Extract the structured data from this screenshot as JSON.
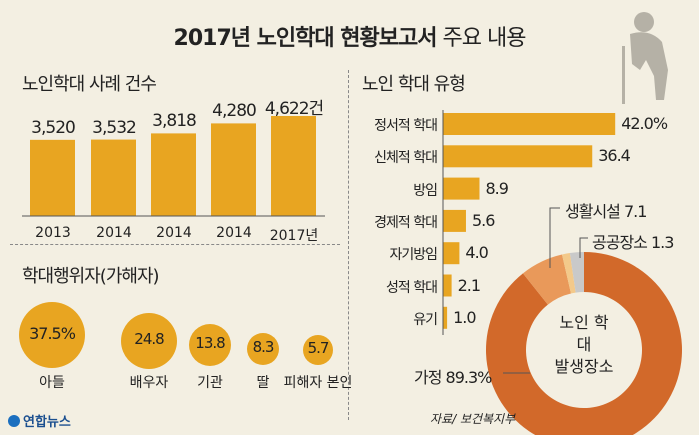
{
  "title": {
    "bold": "2017년 노인학대 현황보고서",
    "normal": " 주요 내용"
  },
  "source": "자료/ 보건복지부",
  "logo": "연합뉴스",
  "colors": {
    "bar": "#e8a521",
    "donut_home": "#d2692a",
    "donut_facility": "#e9995a",
    "donut_public": "#f3c98a",
    "donut_other": "#c9c9c9",
    "background": "#f3efe2"
  },
  "chart_data": [
    {
      "type": "bar",
      "title": "노인학대 사례 건수",
      "categories": [
        "2013",
        "2014",
        "2014",
        "2014",
        "2017년"
      ],
      "values": [
        3520,
        3532,
        3818,
        4280,
        4622
      ],
      "data_labels": [
        "3,520",
        "3,532",
        "3,818",
        "4,280",
        "4,622건"
      ],
      "ylim": [
        0,
        4622
      ],
      "grid": false
    },
    {
      "type": "bubble",
      "title": "학대행위자(가해자)",
      "categories": [
        "아들",
        "배우자",
        "기관",
        "딸",
        "피해자 본인"
      ],
      "values": [
        37.5,
        24.8,
        13.8,
        8.3,
        5.7
      ],
      "data_labels": [
        "37.5%",
        "24.8",
        "13.8",
        "8.3",
        "5.7"
      ]
    },
    {
      "type": "bar",
      "orientation": "horizontal",
      "title": "노인 학대 유형",
      "categories": [
        "정서적 학대",
        "신체적 학대",
        "방임",
        "경제적 학대",
        "자기방임",
        "성적 학대",
        "유기"
      ],
      "values": [
        42.0,
        36.4,
        8.9,
        5.6,
        4.0,
        2.1,
        1.0
      ],
      "data_labels": [
        "42.0%",
        "36.4",
        "8.9",
        "5.6",
        "4.0",
        "2.1",
        "1.0"
      ]
    },
    {
      "type": "pie",
      "donut": true,
      "title": "노인 학대 발생장소",
      "title_lines": [
        "노인 학대",
        "발생장소"
      ],
      "slices": [
        {
          "label": "가정",
          "value": 89.3,
          "text": "가정 89.3%"
        },
        {
          "label": "생활시설",
          "value": 7.1,
          "text": "생활시설 7.1"
        },
        {
          "label": "공공장소",
          "value": 1.3,
          "text": "공공장소 1.3"
        },
        {
          "label": "",
          "value": 2.3
        }
      ]
    }
  ]
}
